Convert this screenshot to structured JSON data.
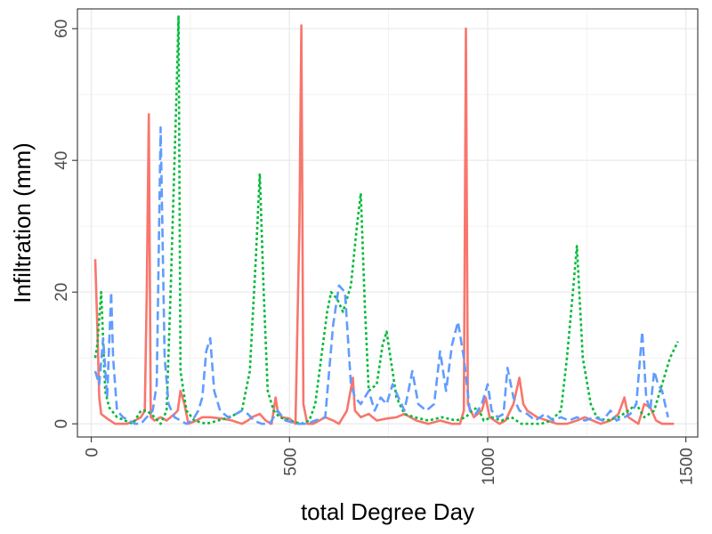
{
  "chart_data": {
    "type": "line",
    "title": "",
    "xlabel": "total Degree Day",
    "ylabel": "Infiltration (mm)",
    "xlim": [
      -35,
      1530
    ],
    "ylim": [
      -2,
      63
    ],
    "x_ticks": [
      0,
      500,
      1000,
      1500
    ],
    "y_ticks": [
      0,
      20,
      40,
      60
    ],
    "grid": true,
    "legend": "none",
    "series": [
      {
        "color": "#F8766D",
        "dash": "solid",
        "points": [
          [
            10,
            25
          ],
          [
            15,
            15
          ],
          [
            20,
            4
          ],
          [
            25,
            1.5
          ],
          [
            40,
            0.8
          ],
          [
            60,
            0
          ],
          [
            90,
            0
          ],
          [
            110,
            0.5
          ],
          [
            125,
            1
          ],
          [
            135,
            2
          ],
          [
            140,
            20
          ],
          [
            145,
            47
          ],
          [
            150,
            1
          ],
          [
            160,
            0.5
          ],
          [
            175,
            1
          ],
          [
            190,
            0.5
          ],
          [
            210,
            1.5
          ],
          [
            218,
            2
          ],
          [
            225,
            5
          ],
          [
            235,
            3
          ],
          [
            245,
            0
          ],
          [
            265,
            0.5
          ],
          [
            280,
            1
          ],
          [
            300,
            1
          ],
          [
            330,
            0.8
          ],
          [
            355,
            0.5
          ],
          [
            380,
            0
          ],
          [
            395,
            0.5
          ],
          [
            405,
            1
          ],
          [
            425,
            1.5
          ],
          [
            440,
            0.5
          ],
          [
            455,
            0
          ],
          [
            465,
            4
          ],
          [
            470,
            2
          ],
          [
            480,
            1
          ],
          [
            500,
            0.8
          ],
          [
            515,
            0
          ],
          [
            525,
            30
          ],
          [
            530,
            60.5
          ],
          [
            535,
            3
          ],
          [
            545,
            0
          ],
          [
            560,
            0
          ],
          [
            575,
            0.5
          ],
          [
            590,
            1
          ],
          [
            610,
            0.5
          ],
          [
            625,
            0
          ],
          [
            645,
            2
          ],
          [
            660,
            7
          ],
          [
            665,
            2
          ],
          [
            680,
            1
          ],
          [
            700,
            1.5
          ],
          [
            720,
            0.5
          ],
          [
            745,
            0.8
          ],
          [
            770,
            1
          ],
          [
            790,
            1.5
          ],
          [
            820,
            0.5
          ],
          [
            850,
            0
          ],
          [
            880,
            0.5
          ],
          [
            910,
            0
          ],
          [
            930,
            0
          ],
          [
            940,
            2
          ],
          [
            945,
            60
          ],
          [
            950,
            3
          ],
          [
            965,
            1
          ],
          [
            985,
            2
          ],
          [
            995,
            4
          ],
          [
            1005,
            1
          ],
          [
            1030,
            0
          ],
          [
            1045,
            0.5
          ],
          [
            1065,
            3
          ],
          [
            1080,
            7
          ],
          [
            1090,
            3
          ],
          [
            1100,
            2
          ],
          [
            1125,
            1
          ],
          [
            1150,
            0.5
          ],
          [
            1175,
            0
          ],
          [
            1200,
            0
          ],
          [
            1225,
            0.5
          ],
          [
            1245,
            1
          ],
          [
            1265,
            0.5
          ],
          [
            1285,
            0
          ],
          [
            1310,
            0.5
          ],
          [
            1330,
            1.5
          ],
          [
            1345,
            4
          ],
          [
            1355,
            1
          ],
          [
            1380,
            0
          ],
          [
            1395,
            3
          ],
          [
            1410,
            2.5
          ],
          [
            1425,
            0.5
          ],
          [
            1440,
            0
          ],
          [
            1470,
            0
          ]
        ]
      },
      {
        "color": "#00BA38",
        "dash": "dotted",
        "points": [
          [
            10,
            10
          ],
          [
            15,
            12
          ],
          [
            25,
            20
          ],
          [
            35,
            5
          ],
          [
            45,
            2.5
          ],
          [
            65,
            1
          ],
          [
            85,
            0.5
          ],
          [
            105,
            0
          ],
          [
            125,
            2
          ],
          [
            140,
            2
          ],
          [
            160,
            1
          ],
          [
            175,
            0
          ],
          [
            190,
            2
          ],
          [
            200,
            20
          ],
          [
            215,
            50
          ],
          [
            220,
            62
          ],
          [
            225,
            8
          ],
          [
            240,
            2
          ],
          [
            260,
            0.5
          ],
          [
            290,
            0
          ],
          [
            320,
            0.5
          ],
          [
            350,
            1
          ],
          [
            380,
            2
          ],
          [
            400,
            8
          ],
          [
            415,
            25
          ],
          [
            425,
            38
          ],
          [
            435,
            20
          ],
          [
            445,
            5
          ],
          [
            460,
            2
          ],
          [
            475,
            1
          ],
          [
            500,
            0.5
          ],
          [
            530,
            0
          ],
          [
            550,
            0.5
          ],
          [
            565,
            3
          ],
          [
            580,
            10
          ],
          [
            595,
            17
          ],
          [
            605,
            20
          ],
          [
            620,
            19
          ],
          [
            635,
            17
          ],
          [
            655,
            21
          ],
          [
            670,
            30
          ],
          [
            680,
            35
          ],
          [
            690,
            18
          ],
          [
            700,
            5
          ],
          [
            720,
            6
          ],
          [
            735,
            12
          ],
          [
            745,
            14
          ],
          [
            755,
            10
          ],
          [
            770,
            4
          ],
          [
            790,
            1.5
          ],
          [
            815,
            1
          ],
          [
            850,
            0.5
          ],
          [
            885,
            1
          ],
          [
            920,
            0.5
          ],
          [
            945,
            1
          ],
          [
            960,
            2
          ],
          [
            975,
            2.5
          ],
          [
            990,
            0.5
          ],
          [
            1010,
            1
          ],
          [
            1035,
            0.5
          ],
          [
            1060,
            1
          ],
          [
            1085,
            0
          ],
          [
            1110,
            0
          ],
          [
            1135,
            0
          ],
          [
            1160,
            0.5
          ],
          [
            1185,
            2
          ],
          [
            1200,
            10
          ],
          [
            1215,
            20
          ],
          [
            1225,
            27
          ],
          [
            1240,
            10
          ],
          [
            1260,
            3
          ],
          [
            1275,
            1
          ],
          [
            1300,
            0.5
          ],
          [
            1330,
            1
          ],
          [
            1355,
            2
          ],
          [
            1375,
            3
          ],
          [
            1395,
            1
          ],
          [
            1420,
            2
          ],
          [
            1440,
            6
          ],
          [
            1460,
            10
          ],
          [
            1480,
            12.5
          ]
        ]
      },
      {
        "color": "#619CFF",
        "dash": "dashed",
        "points": [
          [
            10,
            8
          ],
          [
            20,
            6
          ],
          [
            30,
            13
          ],
          [
            40,
            4
          ],
          [
            50,
            20
          ],
          [
            55,
            10
          ],
          [
            65,
            2
          ],
          [
            80,
            1
          ],
          [
            95,
            0.5
          ],
          [
            110,
            0
          ],
          [
            125,
            0
          ],
          [
            140,
            1
          ],
          [
            155,
            2
          ],
          [
            165,
            6
          ],
          [
            175,
            45
          ],
          [
            185,
            10
          ],
          [
            195,
            3
          ],
          [
            210,
            1
          ],
          [
            225,
            0.5
          ],
          [
            240,
            0
          ],
          [
            255,
            0.5
          ],
          [
            270,
            2
          ],
          [
            280,
            4
          ],
          [
            290,
            11
          ],
          [
            300,
            13
          ],
          [
            310,
            5
          ],
          [
            325,
            2
          ],
          [
            345,
            1
          ],
          [
            365,
            1.5
          ],
          [
            380,
            2
          ],
          [
            395,
            1.5
          ],
          [
            410,
            0.5
          ],
          [
            430,
            0
          ],
          [
            450,
            0
          ],
          [
            470,
            2
          ],
          [
            490,
            0.5
          ],
          [
            520,
            0
          ],
          [
            545,
            0
          ],
          [
            565,
            0.5
          ],
          [
            590,
            1
          ],
          [
            610,
            15
          ],
          [
            625,
            21
          ],
          [
            640,
            20
          ],
          [
            655,
            6
          ],
          [
            665,
            4
          ],
          [
            680,
            3
          ],
          [
            700,
            5
          ],
          [
            715,
            2
          ],
          [
            730,
            4
          ],
          [
            745,
            3
          ],
          [
            760,
            6
          ],
          [
            775,
            4
          ],
          [
            790,
            2
          ],
          [
            800,
            5
          ],
          [
            810,
            8
          ],
          [
            825,
            3
          ],
          [
            845,
            2
          ],
          [
            865,
            3
          ],
          [
            880,
            11
          ],
          [
            895,
            5
          ],
          [
            910,
            12
          ],
          [
            925,
            15.5
          ],
          [
            940,
            10
          ],
          [
            955,
            2
          ],
          [
            970,
            1.5
          ],
          [
            985,
            3
          ],
          [
            1000,
            6
          ],
          [
            1010,
            2
          ],
          [
            1025,
            1
          ],
          [
            1040,
            1.5
          ],
          [
            1050,
            8.5
          ],
          [
            1065,
            4
          ],
          [
            1080,
            2
          ],
          [
            1100,
            1.5
          ],
          [
            1120,
            0.5
          ],
          [
            1145,
            1.5
          ],
          [
            1165,
            0.5
          ],
          [
            1185,
            1
          ],
          [
            1205,
            0.5
          ],
          [
            1225,
            1
          ],
          [
            1245,
            0.5
          ],
          [
            1270,
            1
          ],
          [
            1290,
            0.5
          ],
          [
            1310,
            2
          ],
          [
            1325,
            0.5
          ],
          [
            1345,
            1
          ],
          [
            1360,
            1.5
          ],
          [
            1375,
            3
          ],
          [
            1390,
            14
          ],
          [
            1400,
            4
          ],
          [
            1410,
            2
          ],
          [
            1420,
            8
          ],
          [
            1430,
            6
          ],
          [
            1440,
            5
          ],
          [
            1455,
            1
          ]
        ]
      }
    ]
  }
}
